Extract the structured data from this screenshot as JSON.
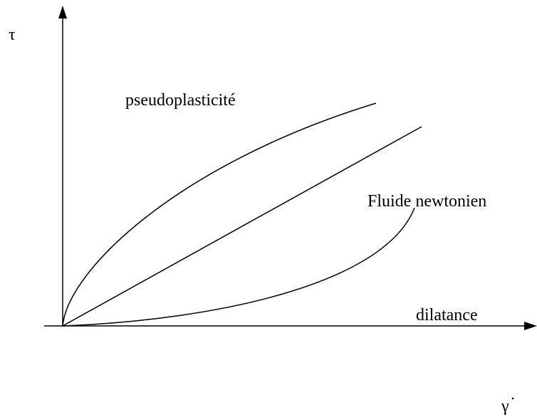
{
  "diagram": {
    "y_axis_label": "τ",
    "x_axis_label": "γ",
    "curves": [
      {
        "label": "pseudoplasticité"
      },
      {
        "label": "Fluide newtonien"
      },
      {
        "label": "dilatance"
      }
    ]
  }
}
